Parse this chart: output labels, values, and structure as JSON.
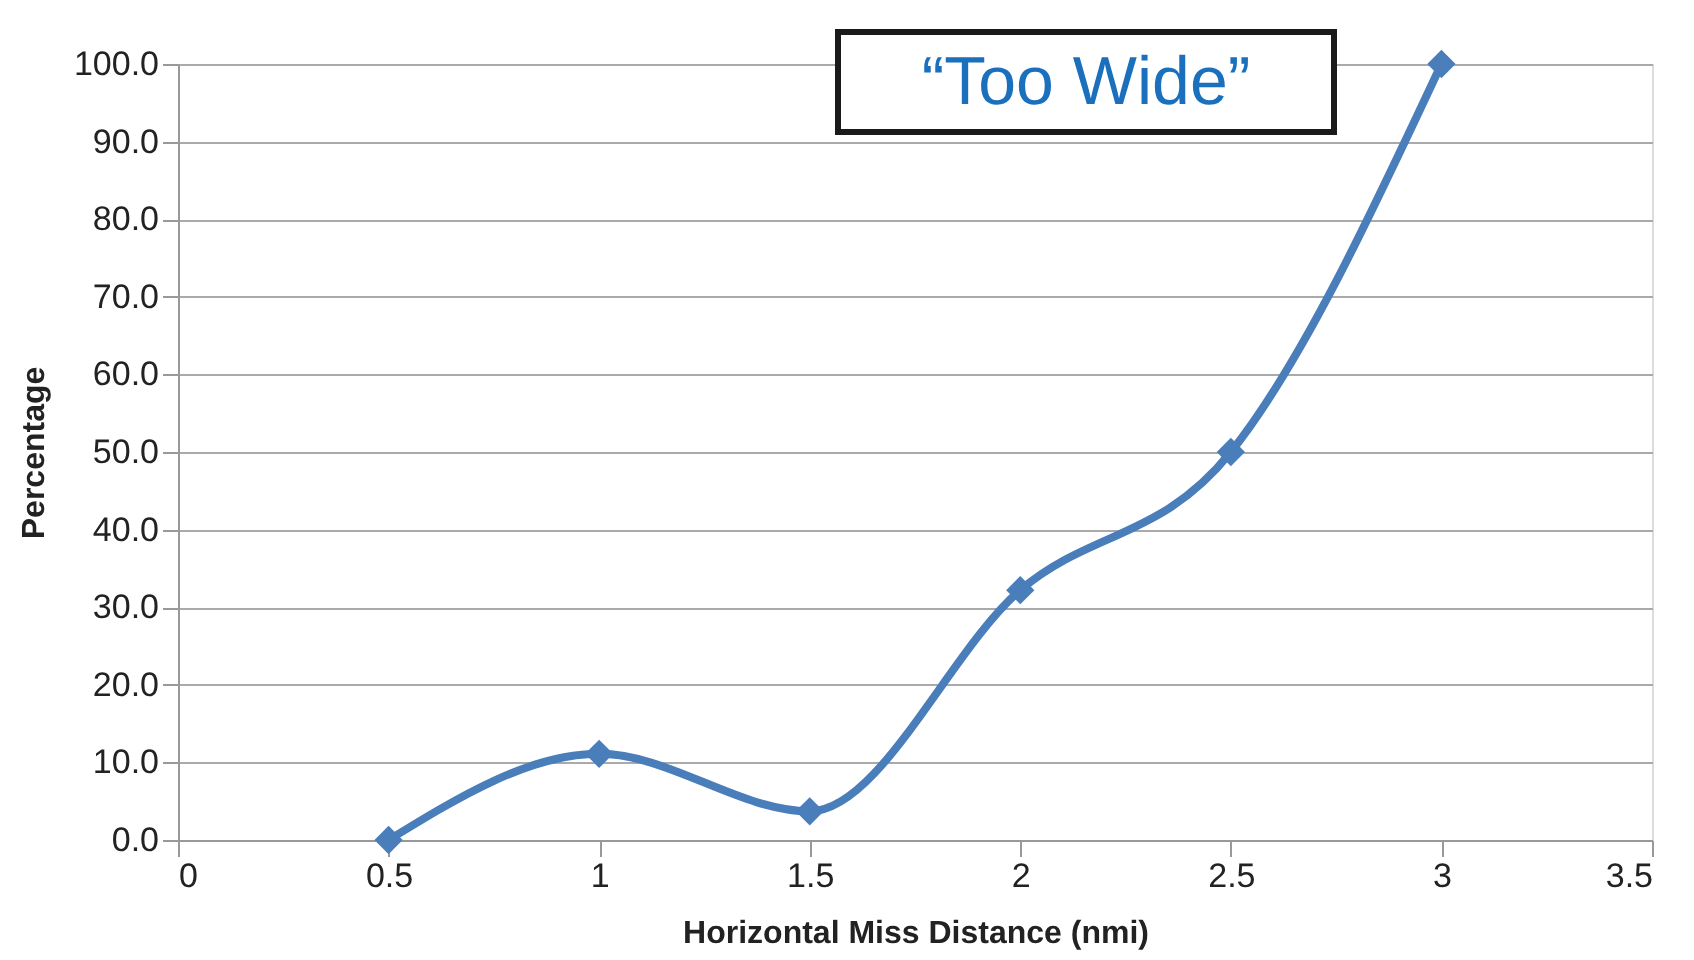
{
  "chart_data": {
    "type": "line",
    "xlabel": "Horizontal Miss Distance (nmi)",
    "ylabel": "Percentage",
    "annotations": [
      "“Too Wide”"
    ],
    "x": [
      0.5,
      1,
      1.5,
      2,
      2.5,
      3
    ],
    "series": [
      {
        "color": "#4a7ebb",
        "values": [
          0,
          11.1,
          3.7,
          32.2,
          50,
          100
        ]
      }
    ],
    "xlim": [
      0,
      3.5
    ],
    "xticks": [
      0,
      0.5,
      1,
      1.5,
      2,
      2.5,
      3,
      3.5
    ],
    "ylim": [
      0,
      100
    ],
    "yticks": [
      {
        "value": 0,
        "label": "0.0"
      },
      {
        "value": 10,
        "label": "10.0"
      },
      {
        "value": 20,
        "label": "20.0"
      },
      {
        "value": 30,
        "label": "30.0"
      },
      {
        "value": 40,
        "label": "40.0"
      },
      {
        "value": 50,
        "label": "50.0"
      },
      {
        "value": 60,
        "label": "60.0"
      },
      {
        "value": 70,
        "label": "70.0"
      },
      {
        "value": 80,
        "label": "80.0"
      },
      {
        "value": 90,
        "label": "90.0"
      },
      {
        "value": 100,
        "label": "100.0"
      }
    ],
    "grid": "y",
    "marker": "diamond",
    "line_style": "solid"
  }
}
